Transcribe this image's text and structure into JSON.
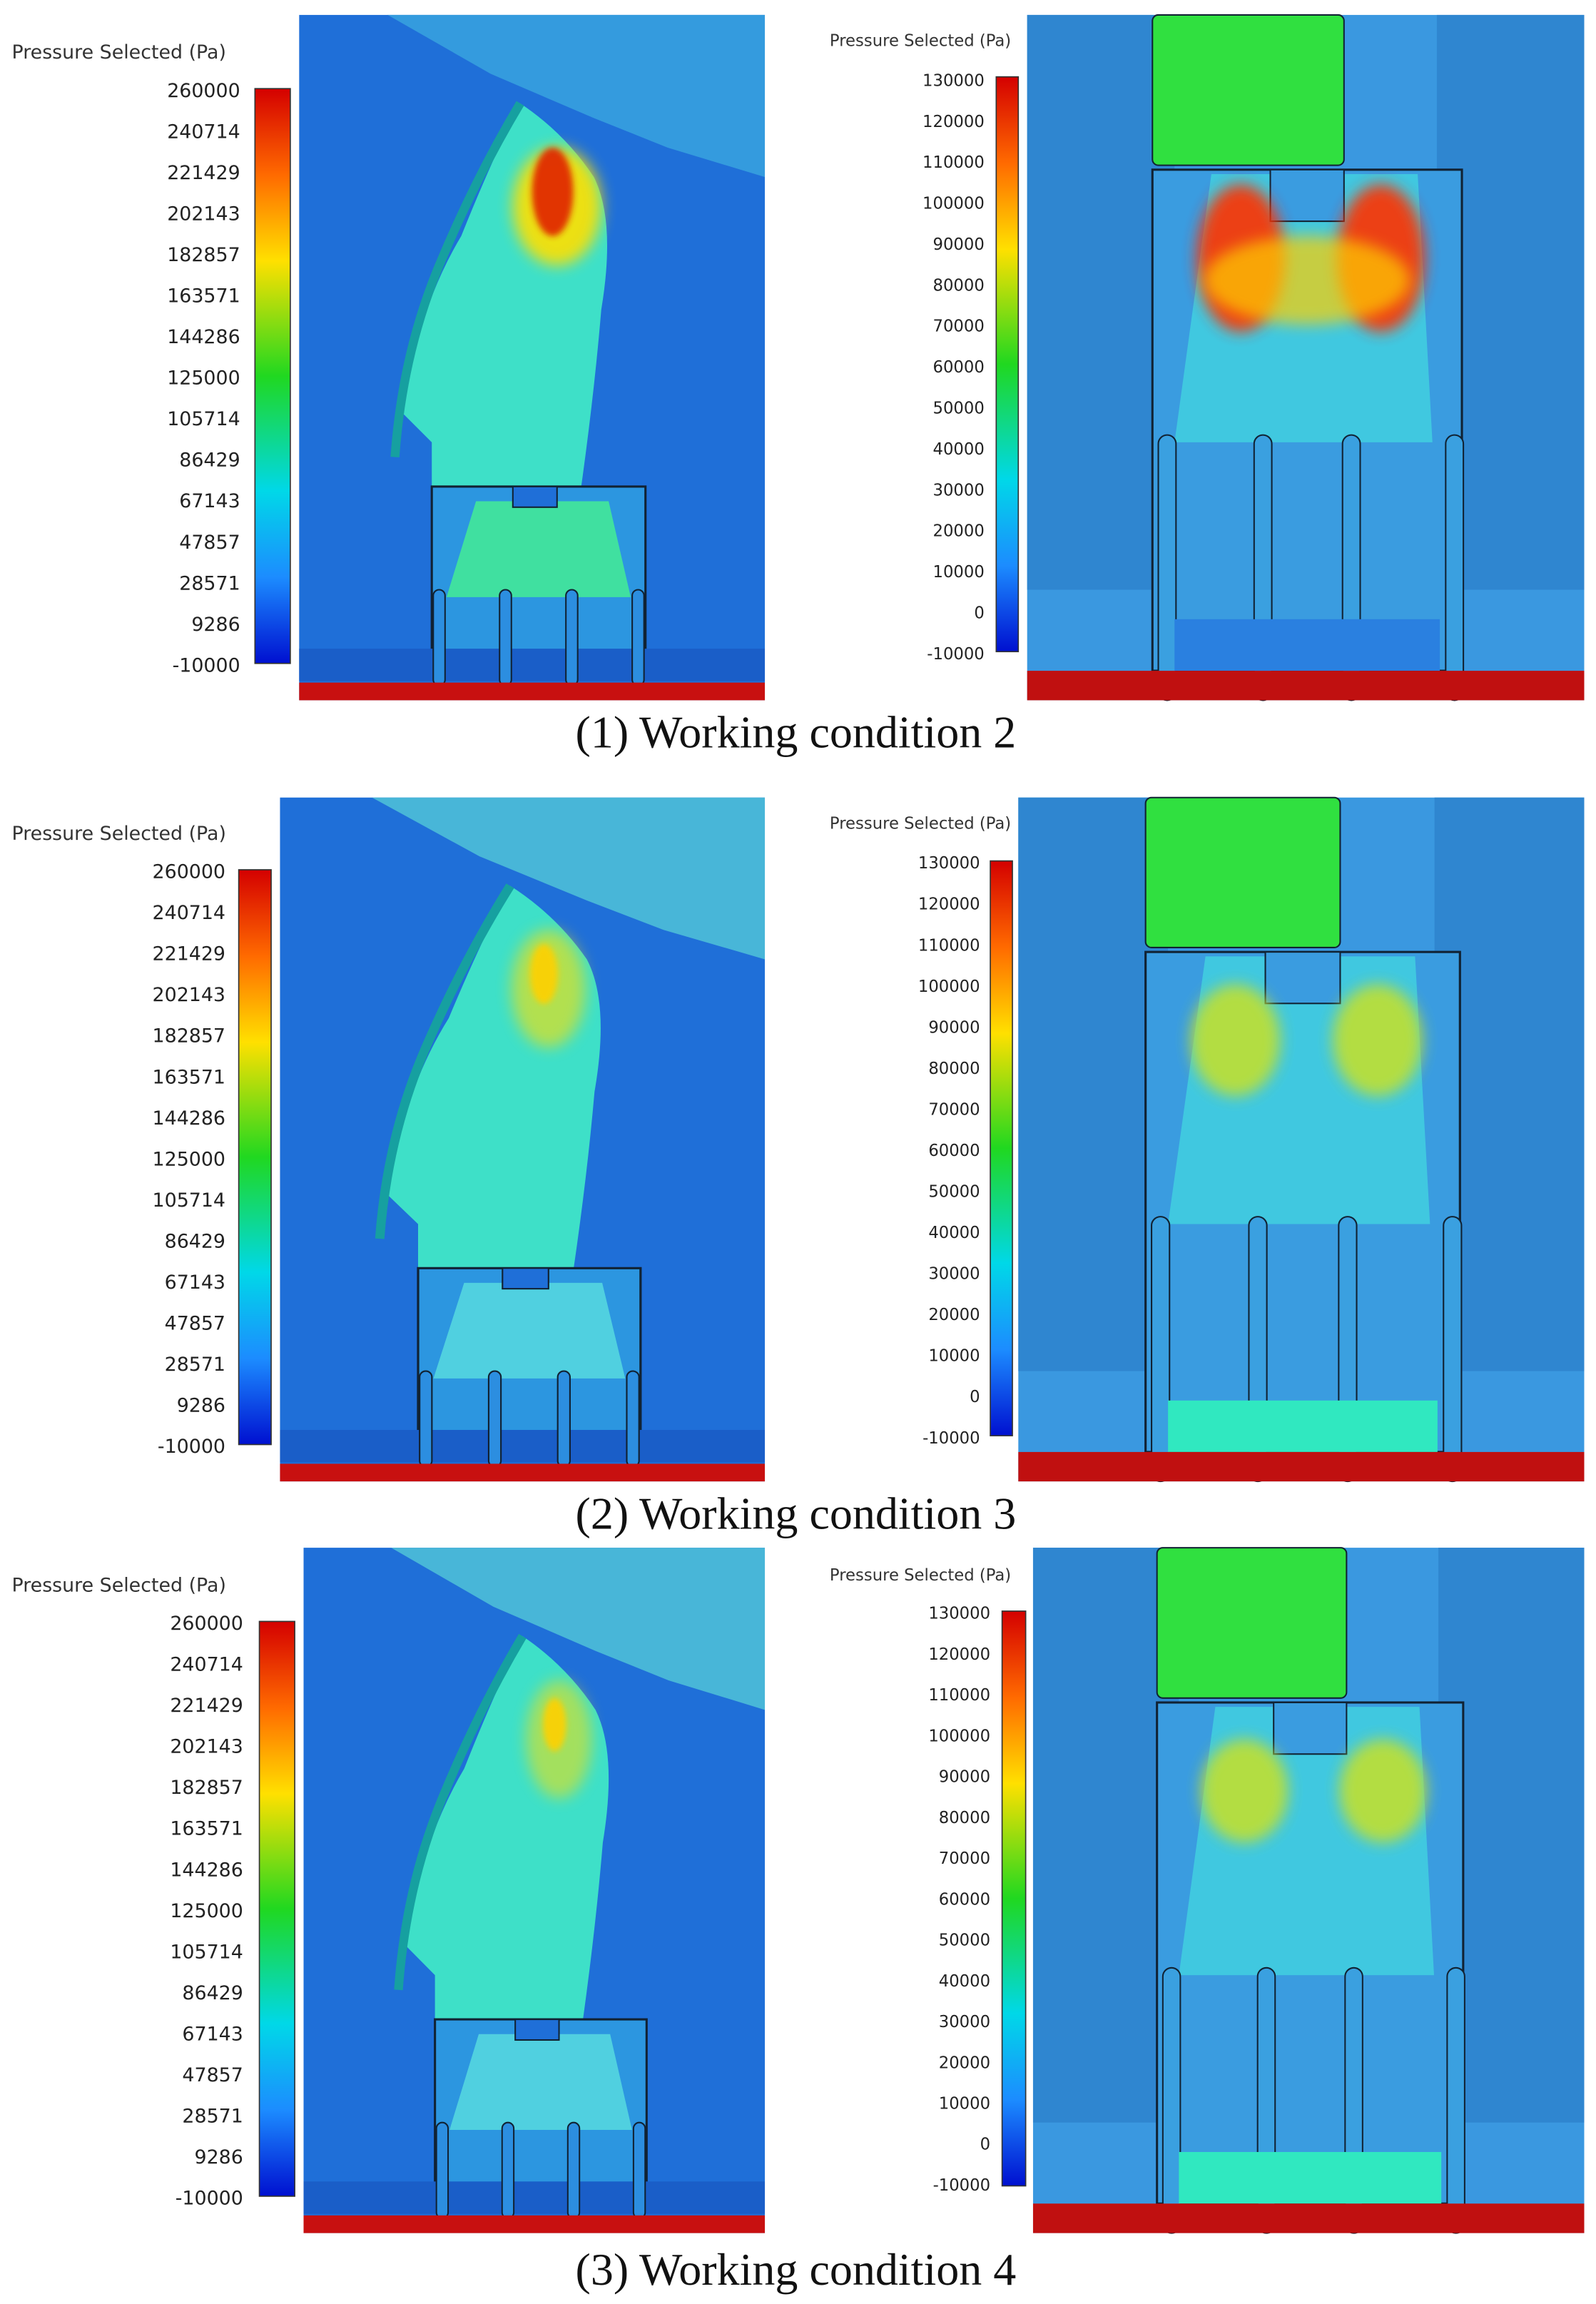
{
  "rows": [
    {
      "caption": "(1) Working condition 2",
      "panels": [
        {
          "legend_title": "Pressure Selected (Pa)",
          "ticks": [
            "260000",
            "240714",
            "221429",
            "202143",
            "182857",
            "163571",
            "144286",
            "125000",
            "105714",
            "86429",
            "67143",
            "47857",
            "28571",
            "9286",
            "-10000"
          ]
        },
        {
          "legend_title": "Pressure Selected (Pa)",
          "ticks": [
            "130000",
            "120000",
            "110000",
            "100000",
            "90000",
            "80000",
            "70000",
            "60000",
            "50000",
            "40000",
            "30000",
            "20000",
            "10000",
            "0",
            "-10000"
          ]
        }
      ]
    },
    {
      "caption": "(2) Working condition 3",
      "panels": [
        {
          "legend_title": "Pressure Selected (Pa)",
          "ticks": [
            "260000",
            "240714",
            "221429",
            "202143",
            "182857",
            "163571",
            "144286",
            "125000",
            "105714",
            "86429",
            "67143",
            "47857",
            "28571",
            "9286",
            "-10000"
          ]
        },
        {
          "legend_title": "Pressure Selected (Pa)",
          "ticks": [
            "130000",
            "120000",
            "110000",
            "100000",
            "90000",
            "80000",
            "70000",
            "60000",
            "50000",
            "40000",
            "30000",
            "20000",
            "10000",
            "0",
            "-10000"
          ]
        }
      ]
    },
    {
      "caption": "(3) Working condition 4",
      "panels": [
        {
          "legend_title": "Pressure Selected (Pa)",
          "ticks": [
            "260000",
            "240714",
            "221429",
            "202143",
            "182857",
            "163571",
            "144286",
            "125000",
            "105714",
            "86429",
            "67143",
            "47857",
            "28571",
            "9286",
            "-10000"
          ]
        },
        {
          "legend_title": "Pressure Selected (Pa)",
          "ticks": [
            "130000",
            "120000",
            "110000",
            "100000",
            "90000",
            "80000",
            "70000",
            "60000",
            "50000",
            "40000",
            "30000",
            "20000",
            "10000",
            "0",
            "-10000"
          ]
        }
      ]
    }
  ]
}
